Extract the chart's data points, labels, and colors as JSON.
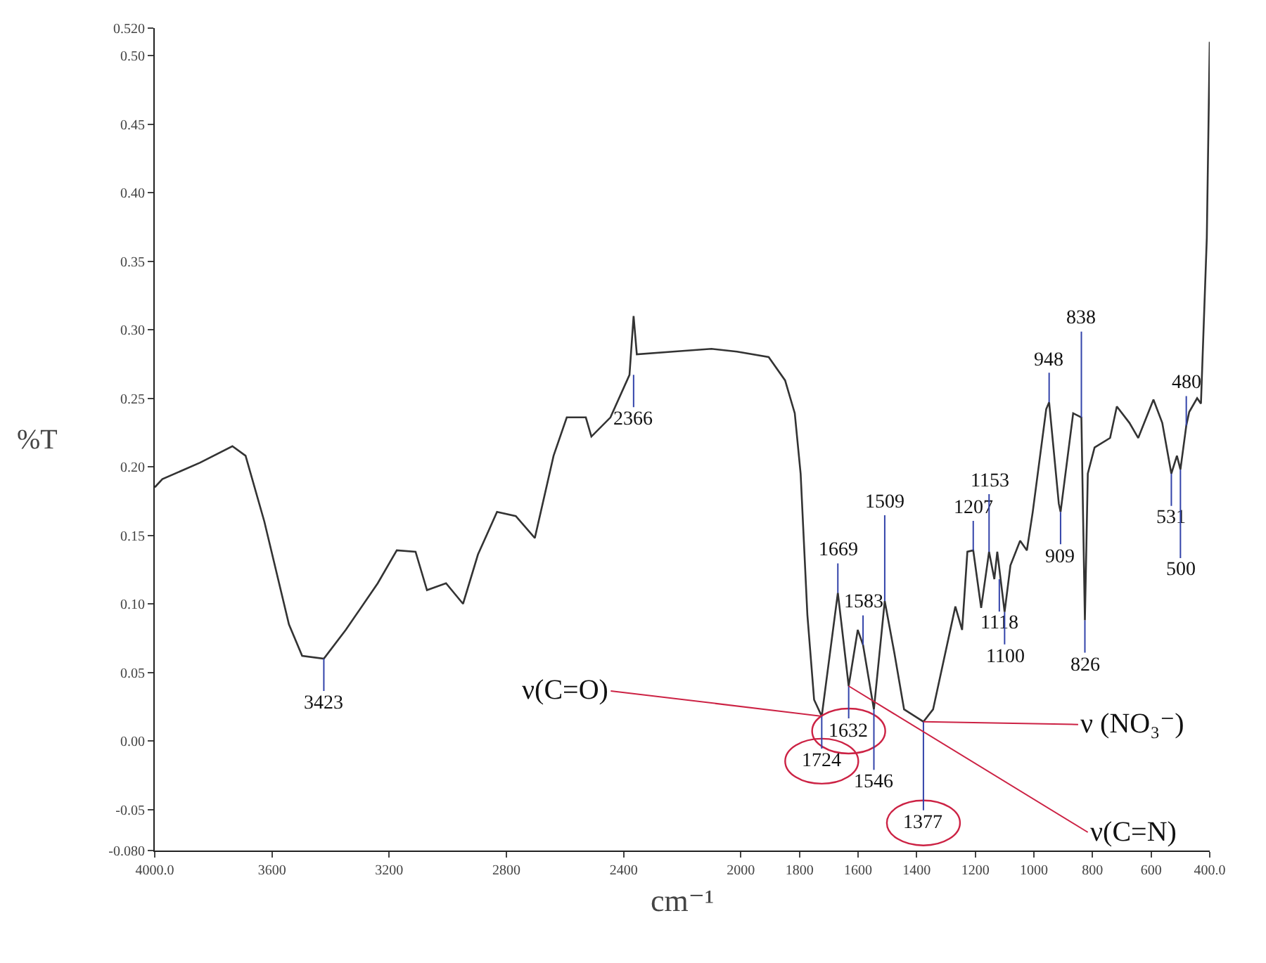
{
  "chart_data": {
    "type": "line",
    "xlabel": "cm⁻¹",
    "ylabel": "%T",
    "xlim": [
      4000,
      400
    ],
    "ylim": [
      -0.08,
      0.52
    ],
    "xticks": [
      {
        "value": 4000,
        "label": "4000.0"
      },
      3600,
      3200,
      2800,
      2400,
      2000,
      1800,
      1600,
      1400,
      1200,
      1000,
      800,
      600,
      {
        "value": 400,
        "label": "400.0"
      }
    ],
    "yticks": [
      {
        "value": -0.08,
        "label": "-0.080"
      },
      {
        "value": -0.05,
        "label": "-0.05"
      },
      {
        "value": 0,
        "label": "0.00"
      },
      {
        "value": 0.05,
        "label": "0.05"
      },
      {
        "value": 0.1,
        "label": "0.10"
      },
      {
        "value": 0.15,
        "label": "0.15"
      },
      {
        "value": 0.2,
        "label": "0.20"
      },
      {
        "value": 0.25,
        "label": "0.25"
      },
      {
        "value": 0.3,
        "label": "0.30"
      },
      {
        "value": 0.35,
        "label": "0.35"
      },
      {
        "value": 0.4,
        "label": "0.40"
      },
      {
        "value": 0.45,
        "label": "0.45"
      },
      {
        "value": 0.5,
        "label": "0.50"
      },
      {
        "value": 0.52,
        "label": "0.520"
      }
    ],
    "grid": false,
    "marker": "none",
    "line_style": "solid",
    "series": [
      {
        "color": "#333333",
        "x": [
          4000,
          3974,
          3845,
          3735,
          3690,
          3626,
          3542,
          3497,
          3423,
          3348,
          3239,
          3174,
          3110,
          3071,
          3006,
          2948,
          2897,
          2832,
          2768,
          2703,
          2639,
          2594,
          2529,
          2510,
          2445,
          2380,
          2366,
          2355,
          2232,
          2100,
          2013,
          1905,
          1849,
          1816,
          1796,
          1773,
          1750,
          1724,
          1669,
          1632,
          1601,
          1583,
          1546,
          1509,
          1476,
          1443,
          1377,
          1344,
          1268,
          1245,
          1227,
          1207,
          1180,
          1153,
          1135,
          1125,
          1100,
          1080,
          1047,
          1024,
          1004,
          958,
          948,
          915,
          909,
          866,
          838,
          826,
          816,
          793,
          740,
          717,
          674,
          644,
          592,
          562,
          531,
          512,
          500,
          480,
          470,
          443,
          430,
          410,
          400
        ],
        "values": [
          0.185,
          0.191,
          0.203,
          0.215,
          0.208,
          0.16,
          0.085,
          0.062,
          0.06,
          0.081,
          0.115,
          0.139,
          0.138,
          0.11,
          0.115,
          0.1,
          0.136,
          0.167,
          0.164,
          0.148,
          0.208,
          0.236,
          0.236,
          0.222,
          0.236,
          0.267,
          0.31,
          0.282,
          0.284,
          0.286,
          0.284,
          0.28,
          0.263,
          0.239,
          0.195,
          0.092,
          0.03,
          0.018,
          0.108,
          0.04,
          0.081,
          0.07,
          0.023,
          0.102,
          0.064,
          0.023,
          0.014,
          0.023,
          0.098,
          0.081,
          0.138,
          0.139,
          0.097,
          0.138,
          0.118,
          0.138,
          0.094,
          0.128,
          0.146,
          0.139,
          0.167,
          0.242,
          0.247,
          0.173,
          0.167,
          0.239,
          0.236,
          0.088,
          0.195,
          0.214,
          0.221,
          0.244,
          0.232,
          0.221,
          0.249,
          0.232,
          0.195,
          0.208,
          0.198,
          0.23,
          0.24,
          0.25,
          0.246,
          0.367,
          0.51
        ]
      }
    ],
    "annotations": [
      {
        "text": "3423",
        "x": 3423,
        "y": 0.06
      },
      {
        "text": "2366",
        "x": 2366,
        "y": 0.267
      },
      {
        "text": "1724",
        "x": 1724,
        "y": 0.018
      },
      {
        "text": "1669",
        "x": 1669,
        "y": 0.108
      },
      {
        "text": "1632",
        "x": 1632,
        "y": 0.04
      },
      {
        "text": "1583",
        "x": 1583,
        "y": 0.07
      },
      {
        "text": "1546",
        "x": 1546,
        "y": 0.023
      },
      {
        "text": "1509",
        "x": 1509,
        "y": 0.102
      },
      {
        "text": "1377",
        "x": 1377,
        "y": 0.014
      },
      {
        "text": "1207",
        "x": 1207,
        "y": 0.139
      },
      {
        "text": "1153",
        "x": 1153,
        "y": 0.138
      },
      {
        "text": "1118",
        "x": 1118,
        "y": 0.118
      },
      {
        "text": "1100",
        "x": 1100,
        "y": 0.094
      },
      {
        "text": "948",
        "x": 948,
        "y": 0.247
      },
      {
        "text": "909",
        "x": 909,
        "y": 0.167
      },
      {
        "text": "838",
        "x": 838,
        "y": 0.236
      },
      {
        "text": "826",
        "x": 826,
        "y": 0.088
      },
      {
        "text": "531",
        "x": 531,
        "y": 0.195
      },
      {
        "text": "500",
        "x": 500,
        "y": 0.198
      },
      {
        "text": "480",
        "x": 480,
        "y": 0.23
      },
      {
        "text": "ν(C=O)",
        "x": 1724,
        "y": 0.018
      },
      {
        "text": "ν(C=N)",
        "x": 1632,
        "y": 0.04
      },
      {
        "text": "ν (NO₃⁻)",
        "x": 1377,
        "y": 0.014
      }
    ]
  }
}
